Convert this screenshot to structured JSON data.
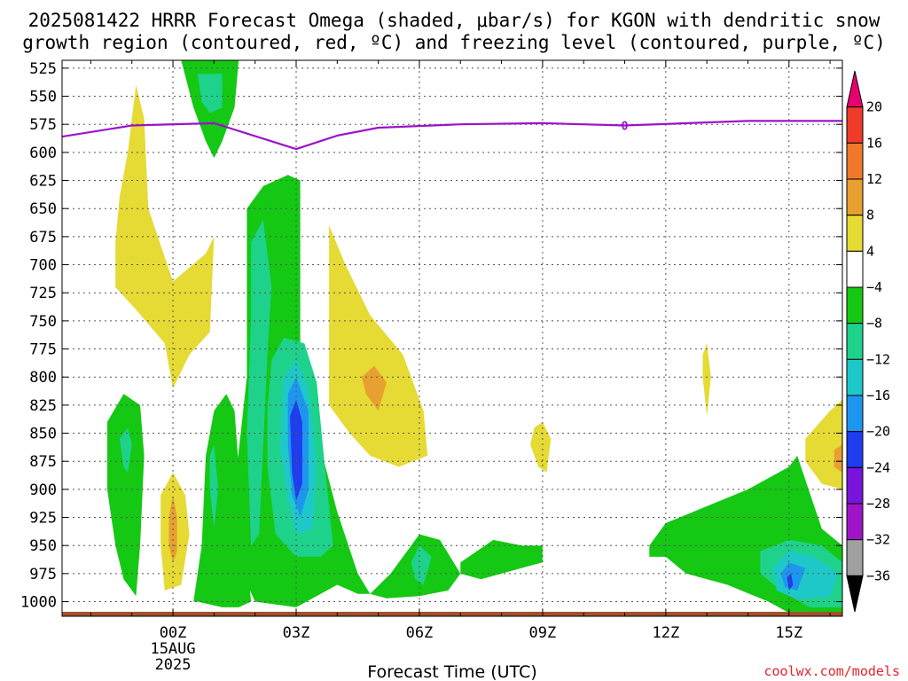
{
  "chart_data": {
    "type": "contour",
    "title_line1": "2025081422 HRRR Forecast Omega (shaded, μbar/s) for KGON with dendritic snow",
    "title_line2": "growth region (contoured, red, ºC) and freezing level (contoured, purple, ºC)",
    "xlabel": "Forecast Time (UTC)",
    "credit": "coolwx.com/models",
    "x_range": [
      -2.7,
      16.3
    ],
    "y_range": [
      1013,
      518
    ],
    "y_ticks": [
      525,
      550,
      575,
      600,
      625,
      650,
      675,
      700,
      725,
      750,
      775,
      800,
      825,
      850,
      875,
      900,
      925,
      950,
      975,
      1000
    ],
    "x_ticks": [
      {
        "x": 0,
        "label": "00Z",
        "sub1": "15AUG",
        "sub2": "2025"
      },
      {
        "x": 3,
        "label": "03Z"
      },
      {
        "x": 6,
        "label": "06Z"
      },
      {
        "x": 9,
        "label": "09Z"
      },
      {
        "x": 12,
        "label": "12Z"
      },
      {
        "x": 15,
        "label": "15Z"
      }
    ],
    "colorbar": {
      "labels": [
        "20",
        "16",
        "12",
        "8",
        "4",
        "−4",
        "−8",
        "−12",
        "−16",
        "−20",
        "−24",
        "−28",
        "−32",
        "−36"
      ],
      "colors_top_to_bottom": [
        "#e8006e",
        "#f03a2a",
        "#f0782a",
        "#e8a030",
        "#e6da35",
        "#ffffff",
        "#14c814",
        "#1ed28c",
        "#1ec8c8",
        "#1e96f0",
        "#1e3cf0",
        "#7814dc",
        "#a014c8",
        "#a0a0a0",
        "#000000"
      ]
    },
    "freezing_level": {
      "color": "#9b14c8",
      "contour_label": "0",
      "label_x": 11,
      "x": [
        -2.7,
        -1,
        1,
        3,
        4,
        5,
        7,
        9,
        11,
        14,
        16.3
      ],
      "y": [
        586,
        576,
        574,
        597,
        585,
        578,
        575,
        574,
        576,
        572,
        572
      ]
    },
    "terrain": {
      "color": "#a0522d",
      "pressure_top": 1009
    },
    "shaded_regions": [
      {
        "value": 6,
        "color": "#e6da35",
        "points": [
          [
            -1.1,
            600
          ],
          [
            -0.9,
            540
          ],
          [
            -0.7,
            570
          ],
          [
            -0.6,
            650
          ],
          [
            0,
            715
          ],
          [
            0.8,
            690
          ],
          [
            1,
            675
          ],
          [
            0.9,
            760
          ],
          [
            0.4,
            780
          ],
          [
            0,
            810
          ],
          [
            -0.2,
            770
          ],
          [
            -0.9,
            740
          ],
          [
            -1.4,
            720
          ],
          [
            -1.4,
            680
          ],
          [
            -1.3,
            640
          ]
        ]
      },
      {
        "value": 6,
        "color": "#e6da35",
        "points": [
          [
            3.8,
            665
          ],
          [
            4.2,
            700
          ],
          [
            4.8,
            745
          ],
          [
            5.6,
            780
          ],
          [
            6.1,
            830
          ],
          [
            6.2,
            870
          ],
          [
            5.5,
            880
          ],
          [
            4.8,
            870
          ],
          [
            4.3,
            850
          ],
          [
            3.8,
            825
          ],
          [
            3.8,
            760
          ]
        ]
      },
      {
        "value": 6,
        "color": "#e6da35",
        "points": [
          [
            -0.3,
            905
          ],
          [
            0,
            885
          ],
          [
            0.3,
            905
          ],
          [
            0.4,
            940
          ],
          [
            0.2,
            985
          ],
          [
            -0.2,
            990
          ],
          [
            -0.3,
            950
          ]
        ]
      },
      {
        "value": 6,
        "color": "#e6da35",
        "points": [
          [
            8.8,
            845
          ],
          [
            9.0,
            840
          ],
          [
            9.2,
            855
          ],
          [
            9.1,
            885
          ],
          [
            8.9,
            880
          ],
          [
            8.7,
            860
          ]
        ]
      },
      {
        "value": 6,
        "color": "#e6da35",
        "points": [
          [
            12.9,
            780
          ],
          [
            13.0,
            770
          ],
          [
            13.1,
            800
          ],
          [
            13.0,
            835
          ],
          [
            12.9,
            800
          ]
        ]
      },
      {
        "value": 6,
        "color": "#e6da35",
        "points": [
          [
            15.4,
            855
          ],
          [
            16.0,
            830
          ],
          [
            16.3,
            820
          ],
          [
            16.3,
            900
          ],
          [
            15.8,
            895
          ],
          [
            15.4,
            875
          ]
        ]
      },
      {
        "value": 10,
        "color": "#e8a030",
        "points": [
          [
            4.6,
            800
          ],
          [
            4.9,
            790
          ],
          [
            5.2,
            805
          ],
          [
            5.0,
            830
          ],
          [
            4.7,
            815
          ]
        ]
      },
      {
        "value": 10,
        "color": "#e8a030",
        "points": [
          [
            -0.1,
            925
          ],
          [
            0.0,
            905
          ],
          [
            0.1,
            925
          ],
          [
            0.1,
            955
          ],
          [
            0.0,
            965
          ],
          [
            -0.1,
            950
          ]
        ]
      },
      {
        "value": 10,
        "color": "#e8a030",
        "points": [
          [
            16.1,
            865
          ],
          [
            16.3,
            860
          ],
          [
            16.3,
            885
          ],
          [
            16.1,
            880
          ]
        ]
      },
      {
        "value": -6,
        "color": "#14c814",
        "points": [
          [
            0.2,
            518
          ],
          [
            1.6,
            518
          ],
          [
            1.5,
            560
          ],
          [
            1.2,
            590
          ],
          [
            1.0,
            605
          ],
          [
            0.8,
            590
          ],
          [
            0.5,
            560
          ]
        ]
      },
      {
        "value": -6,
        "color": "#14c814",
        "points": [
          [
            1.8,
            650
          ],
          [
            2.2,
            630
          ],
          [
            2.8,
            620
          ],
          [
            3.1,
            625
          ],
          [
            3.1,
            700
          ],
          [
            3.1,
            780
          ],
          [
            3.5,
            850
          ],
          [
            4.0,
            920
          ],
          [
            4.5,
            975
          ],
          [
            4.8,
            993
          ],
          [
            4.5,
            993
          ],
          [
            4.0,
            985
          ],
          [
            3.0,
            1005
          ],
          [
            2.0,
            1000
          ],
          [
            1.5,
            960
          ],
          [
            1.5,
            900
          ],
          [
            1.8,
            800
          ],
          [
            1.8,
            700
          ]
        ]
      },
      {
        "value": -6,
        "color": "#14c814",
        "points": [
          [
            0.8,
            870
          ],
          [
            1.0,
            830
          ],
          [
            1.3,
            815
          ],
          [
            1.5,
            830
          ],
          [
            1.6,
            880
          ],
          [
            1.8,
            960
          ],
          [
            1.9,
            1000
          ],
          [
            1.6,
            1005
          ],
          [
            1.2,
            1005
          ],
          [
            0.6,
            1000
          ],
          [
            0.5,
            1000
          ],
          [
            0.7,
            950
          ]
        ]
      },
      {
        "value": -6,
        "color": "#14c814",
        "points": [
          [
            -1.6,
            840
          ],
          [
            -1.2,
            815
          ],
          [
            -0.8,
            825
          ],
          [
            -0.7,
            870
          ],
          [
            -0.8,
            950
          ],
          [
            -0.9,
            995
          ],
          [
            -1.2,
            980
          ],
          [
            -1.4,
            950
          ],
          [
            -1.6,
            900
          ]
        ]
      },
      {
        "value": -6,
        "color": "#14c814",
        "points": [
          [
            4.8,
            993
          ],
          [
            5.3,
            975
          ],
          [
            5.8,
            950
          ],
          [
            6.0,
            940
          ],
          [
            6.5,
            945
          ],
          [
            7.0,
            975
          ],
          [
            6.7,
            990
          ],
          [
            6.0,
            995
          ],
          [
            5.2,
            997
          ]
        ]
      },
      {
        "value": -6,
        "color": "#14c814",
        "points": [
          [
            7.0,
            965
          ],
          [
            7.8,
            945
          ],
          [
            8.5,
            950
          ],
          [
            9.0,
            950
          ],
          [
            9.0,
            965
          ],
          [
            8.5,
            970
          ],
          [
            7.5,
            980
          ],
          [
            7.0,
            975
          ]
        ]
      },
      {
        "value": -6,
        "color": "#14c814",
        "points": [
          [
            11.6,
            950
          ],
          [
            12.0,
            930
          ],
          [
            13.0,
            915
          ],
          [
            14.0,
            900
          ],
          [
            15.0,
            880
          ],
          [
            15.2,
            870
          ],
          [
            15.8,
            935
          ],
          [
            16.3,
            950
          ],
          [
            16.3,
            1010
          ],
          [
            15.0,
            1010
          ],
          [
            14.5,
            1000
          ],
          [
            13.5,
            985
          ],
          [
            12.5,
            975
          ],
          [
            12.0,
            960
          ],
          [
            11.6,
            960
          ]
        ]
      },
      {
        "value": -10,
        "color": "#1ed28c",
        "points": [
          [
            1.9,
            680
          ],
          [
            2.2,
            660
          ],
          [
            2.4,
            720
          ],
          [
            2.3,
            780
          ],
          [
            2.2,
            860
          ],
          [
            2.1,
            940
          ],
          [
            1.9,
            950
          ],
          [
            1.8,
            850
          ],
          [
            1.9,
            750
          ]
        ]
      },
      {
        "value": -10,
        "color": "#1ed28c",
        "points": [
          [
            2.4,
            785
          ],
          [
            2.7,
            765
          ],
          [
            3.2,
            770
          ],
          [
            3.5,
            805
          ],
          [
            3.7,
            880
          ],
          [
            3.9,
            950
          ],
          [
            3.6,
            960
          ],
          [
            3.0,
            960
          ],
          [
            2.5,
            940
          ],
          [
            2.3,
            880
          ],
          [
            2.3,
            830
          ]
        ]
      },
      {
        "value": -10,
        "color": "#1ed28c",
        "points": [
          [
            0.6,
            530
          ],
          [
            1.2,
            530
          ],
          [
            1.2,
            560
          ],
          [
            0.9,
            565
          ],
          [
            0.7,
            555
          ]
        ]
      },
      {
        "value": -10,
        "color": "#1ed28c",
        "points": [
          [
            0.9,
            870
          ],
          [
            1.0,
            860
          ],
          [
            1.1,
            900
          ],
          [
            1.0,
            935
          ],
          [
            0.9,
            900
          ]
        ]
      },
      {
        "value": -10,
        "color": "#1ed28c",
        "points": [
          [
            -1.3,
            855
          ],
          [
            -1.1,
            845
          ],
          [
            -1.0,
            860
          ],
          [
            -1.1,
            885
          ],
          [
            -1.2,
            880
          ]
        ]
      },
      {
        "value": -10,
        "color": "#1ed28c",
        "points": [
          [
            5.8,
            965
          ],
          [
            6.0,
            950
          ],
          [
            6.3,
            960
          ],
          [
            6.1,
            985
          ],
          [
            5.9,
            980
          ]
        ]
      },
      {
        "value": -10,
        "color": "#1ed28c",
        "points": [
          [
            14.3,
            955
          ],
          [
            15.0,
            945
          ],
          [
            15.8,
            950
          ],
          [
            16.3,
            965
          ],
          [
            16.3,
            1005
          ],
          [
            15.5,
            1005
          ],
          [
            14.8,
            990
          ],
          [
            14.3,
            975
          ]
        ]
      },
      {
        "value": -14,
        "color": "#1ec8c8",
        "points": [
          [
            2.7,
            800
          ],
          [
            3.0,
            785
          ],
          [
            3.3,
            810
          ],
          [
            3.5,
            880
          ],
          [
            3.4,
            935
          ],
          [
            3.0,
            940
          ],
          [
            2.8,
            910
          ],
          [
            2.6,
            860
          ]
        ]
      },
      {
        "value": -14,
        "color": "#1ec8c8",
        "points": [
          [
            14.6,
            970
          ],
          [
            15.0,
            955
          ],
          [
            15.6,
            960
          ],
          [
            16.2,
            975
          ],
          [
            16.0,
            995
          ],
          [
            15.2,
            998
          ],
          [
            14.7,
            990
          ]
        ]
      },
      {
        "value": -18,
        "color": "#1e96f0",
        "points": [
          [
            2.8,
            815
          ],
          [
            3.0,
            800
          ],
          [
            3.3,
            830
          ],
          [
            3.3,
            900
          ],
          [
            3.1,
            925
          ],
          [
            2.9,
            905
          ],
          [
            2.8,
            860
          ]
        ]
      },
      {
        "value": -18,
        "color": "#1e96f0",
        "points": [
          [
            14.8,
            975
          ],
          [
            15.0,
            965
          ],
          [
            15.4,
            970
          ],
          [
            15.2,
            990
          ],
          [
            14.9,
            987
          ]
        ]
      },
      {
        "value": -22,
        "color": "#1e3cf0",
        "points": [
          [
            2.85,
            835
          ],
          [
            3.0,
            820
          ],
          [
            3.15,
            840
          ],
          [
            3.15,
            895
          ],
          [
            3.0,
            910
          ],
          [
            2.9,
            885
          ]
        ]
      },
      {
        "value": -22,
        "color": "#1e3cf0",
        "points": [
          [
            14.95,
            978
          ],
          [
            15.05,
            975
          ],
          [
            15.1,
            985
          ],
          [
            15.0,
            990
          ]
        ]
      }
    ]
  }
}
